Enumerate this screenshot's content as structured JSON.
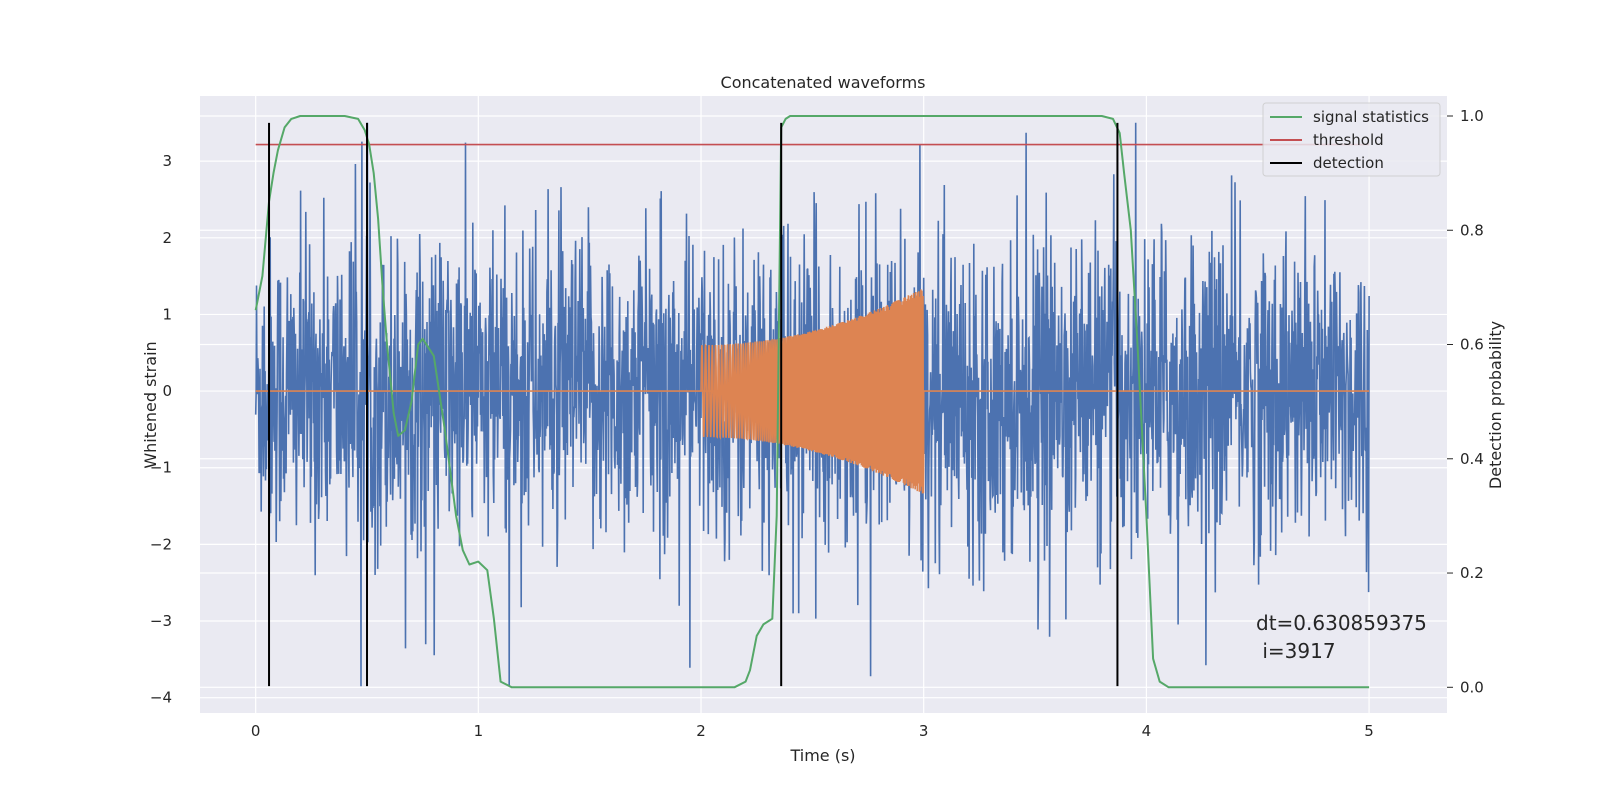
{
  "chart_data": {
    "type": "line",
    "title": "Concatenated waveforms",
    "xlabel": "Time (s)",
    "ylabel": "Whitened strain",
    "y2label": "Detection probability",
    "xlim": [
      -0.25,
      5.35
    ],
    "ylim": [
      -4.2,
      3.85
    ],
    "y2lim": [
      -0.045,
      1.035
    ],
    "x_ticks": [
      0,
      1,
      2,
      3,
      4,
      5
    ],
    "y_ticks": [
      -4,
      -3,
      -2,
      -1,
      0,
      1,
      2,
      3
    ],
    "y2_ticks": [
      0.0,
      0.2,
      0.4,
      0.6,
      0.8,
      1.0
    ],
    "x_tick_labels": [
      "0",
      "1",
      "2",
      "3",
      "4",
      "5"
    ],
    "y_tick_labels": [
      "−4",
      "−3",
      "−2",
      "−1",
      "0",
      "1",
      "2",
      "3"
    ],
    "y2_tick_labels": [
      "0.0",
      "0.2",
      "0.4",
      "0.6",
      "0.8",
      "1.0"
    ],
    "grid": true,
    "legend_position": "top-right",
    "colors": {
      "background": "#eaeaf2",
      "noise": "#4c72b0",
      "injection": "#dd8452",
      "signal_statistics": "#55a868",
      "threshold": "#c44e52",
      "detection": "#000000"
    },
    "series": [
      {
        "name": "signal statistics",
        "axis": "right",
        "x": [
          0,
          0.03,
          0.06,
          0.08,
          0.1,
          0.13,
          0.16,
          0.2,
          0.3,
          0.4,
          0.46,
          0.49,
          0.51,
          0.53,
          0.55,
          0.57,
          0.59,
          0.6,
          0.62,
          0.64,
          0.67,
          0.7,
          0.73,
          0.75,
          0.8,
          0.85,
          0.9,
          0.93,
          0.96,
          1.0,
          1.04,
          1.07,
          1.1,
          1.15,
          1.3,
          1.6,
          2.0,
          2.15,
          2.2,
          2.22,
          2.25,
          2.28,
          2.32,
          2.34,
          2.36,
          2.38,
          2.4,
          2.45,
          2.6,
          3.0,
          3.5,
          3.8,
          3.85,
          3.88,
          3.9,
          3.93,
          3.96,
          4.0,
          4.03,
          4.06,
          4.1,
          4.2,
          5.0
        ],
        "values": [
          0.66,
          0.72,
          0.85,
          0.9,
          0.94,
          0.98,
          0.995,
          1.0,
          1.0,
          1.0,
          0.995,
          0.975,
          0.95,
          0.9,
          0.82,
          0.7,
          0.6,
          0.56,
          0.48,
          0.44,
          0.45,
          0.5,
          0.6,
          0.61,
          0.58,
          0.45,
          0.3,
          0.24,
          0.215,
          0.22,
          0.205,
          0.12,
          0.01,
          0.0,
          0.0,
          0.0,
          0.0,
          0.0,
          0.01,
          0.03,
          0.09,
          0.11,
          0.12,
          0.3,
          0.98,
          0.995,
          1.0,
          1.0,
          1.0,
          1.0,
          1.0,
          1.0,
          0.995,
          0.97,
          0.9,
          0.8,
          0.6,
          0.3,
          0.05,
          0.01,
          0.0,
          0.0,
          0.0
        ]
      },
      {
        "name": "threshold",
        "axis": "right",
        "x": [
          0,
          5
        ],
        "values": [
          0.95,
          0.95
        ]
      },
      {
        "name": "detection",
        "type": "vlines",
        "x": [
          0.06,
          0.5,
          2.36,
          3.87
        ],
        "ymin": -3.85,
        "ymax": 3.5
      },
      {
        "name": "",
        "role": "whitened strain noise",
        "x_range": [
          0,
          5
        ],
        "envelope": {
          "typical_amplitude": 1.8,
          "min": -3.85,
          "max": 3.5
        }
      },
      {
        "name": "",
        "role": "injected chirp",
        "x_range": [
          2.0,
          3.0
        ],
        "amplitude_start": 0.6,
        "amplitude_end": 1.35,
        "baseline": 0
      }
    ],
    "annotations": [
      {
        "text": "dt=0.630859375",
        "x": 4.5,
        "y": -3.3
      },
      {
        "text": " i=3917",
        "x": 4.5,
        "y": -3.67
      }
    ]
  }
}
